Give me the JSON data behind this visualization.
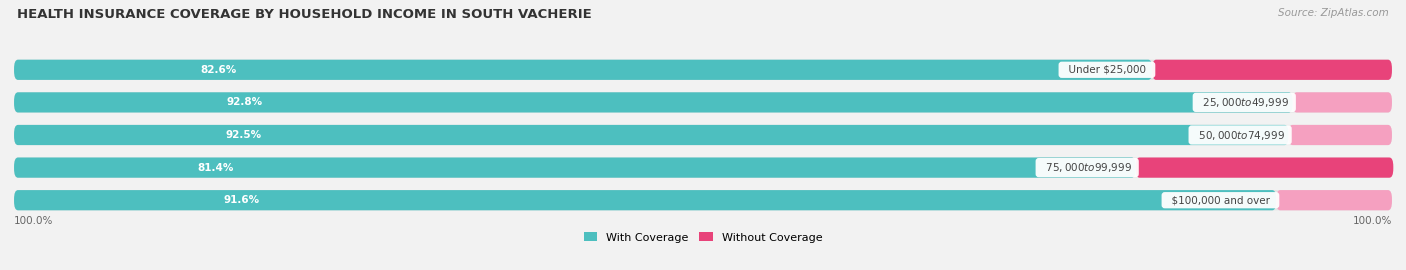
{
  "title": "HEALTH INSURANCE COVERAGE BY HOUSEHOLD INCOME IN SOUTH VACHERIE",
  "source": "Source: ZipAtlas.com",
  "categories": [
    "Under $25,000",
    "$25,000 to $49,999",
    "$50,000 to $74,999",
    "$75,000 to $99,999",
    "$100,000 and over"
  ],
  "with_coverage": [
    82.6,
    92.8,
    92.5,
    81.4,
    91.6
  ],
  "without_coverage": [
    17.4,
    7.2,
    7.5,
    18.7,
    8.4
  ],
  "color_with": "#4DBFBF",
  "color_with_dark": "#3AACAC",
  "color_without_dark": "#E8437A",
  "color_without_light": "#F5A0C0",
  "color_without": [
    "#E8437A",
    "#F5A0C0",
    "#F5A0C0",
    "#E8437A",
    "#F5A0C0"
  ],
  "background_color": "#f2f2f2",
  "bar_background": "#e4e4e4",
  "title_fontsize": 9.5,
  "legend_label_with": "With Coverage",
  "legend_label_without": "Without Coverage",
  "xlim": [
    0,
    100
  ],
  "bar_height": 0.62
}
